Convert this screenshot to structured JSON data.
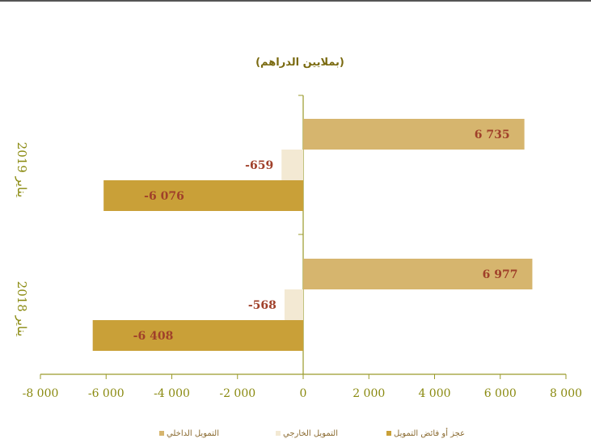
{
  "chart_data": {
    "type": "bar",
    "orientation": "horizontal",
    "title": "(بملايين الدراهم)",
    "categories": [
      "يناير 2019",
      "يناير 2018"
    ],
    "series": [
      {
        "name": "التمويل الداخلي",
        "values": [
          6735,
          6977
        ],
        "labels": [
          "6 735",
          "6 977"
        ],
        "color": "#d6b56e"
      },
      {
        "name": "التمويل الخارجي",
        "values": [
          -659,
          -568
        ],
        "labels": [
          "-659",
          "-568"
        ],
        "color": "#f3e9d3"
      },
      {
        "name": "عجز أو فائض التمويل",
        "values": [
          -6076,
          -6408
        ],
        "labels": [
          "-6 076",
          "-6 408"
        ],
        "color": "#c9a038"
      }
    ],
    "xlim": [
      -8000,
      8000
    ],
    "xticks": [
      -8000,
      -6000,
      -4000,
      -2000,
      0,
      2000,
      4000,
      6000,
      8000
    ],
    "xtick_labels": [
      "-8 000",
      "-6 000",
      "-4 000",
      "-2 000",
      "0",
      "2 000",
      "4 000",
      "6 000",
      "8 000"
    ],
    "legend_position": "bottom",
    "grid": false,
    "colors": {
      "axis": "#9a9a2a",
      "title": "#7a6a10",
      "category_text": "#8a8a10",
      "data_label": "#a0402a",
      "legend_text": "#8a6a30"
    }
  }
}
